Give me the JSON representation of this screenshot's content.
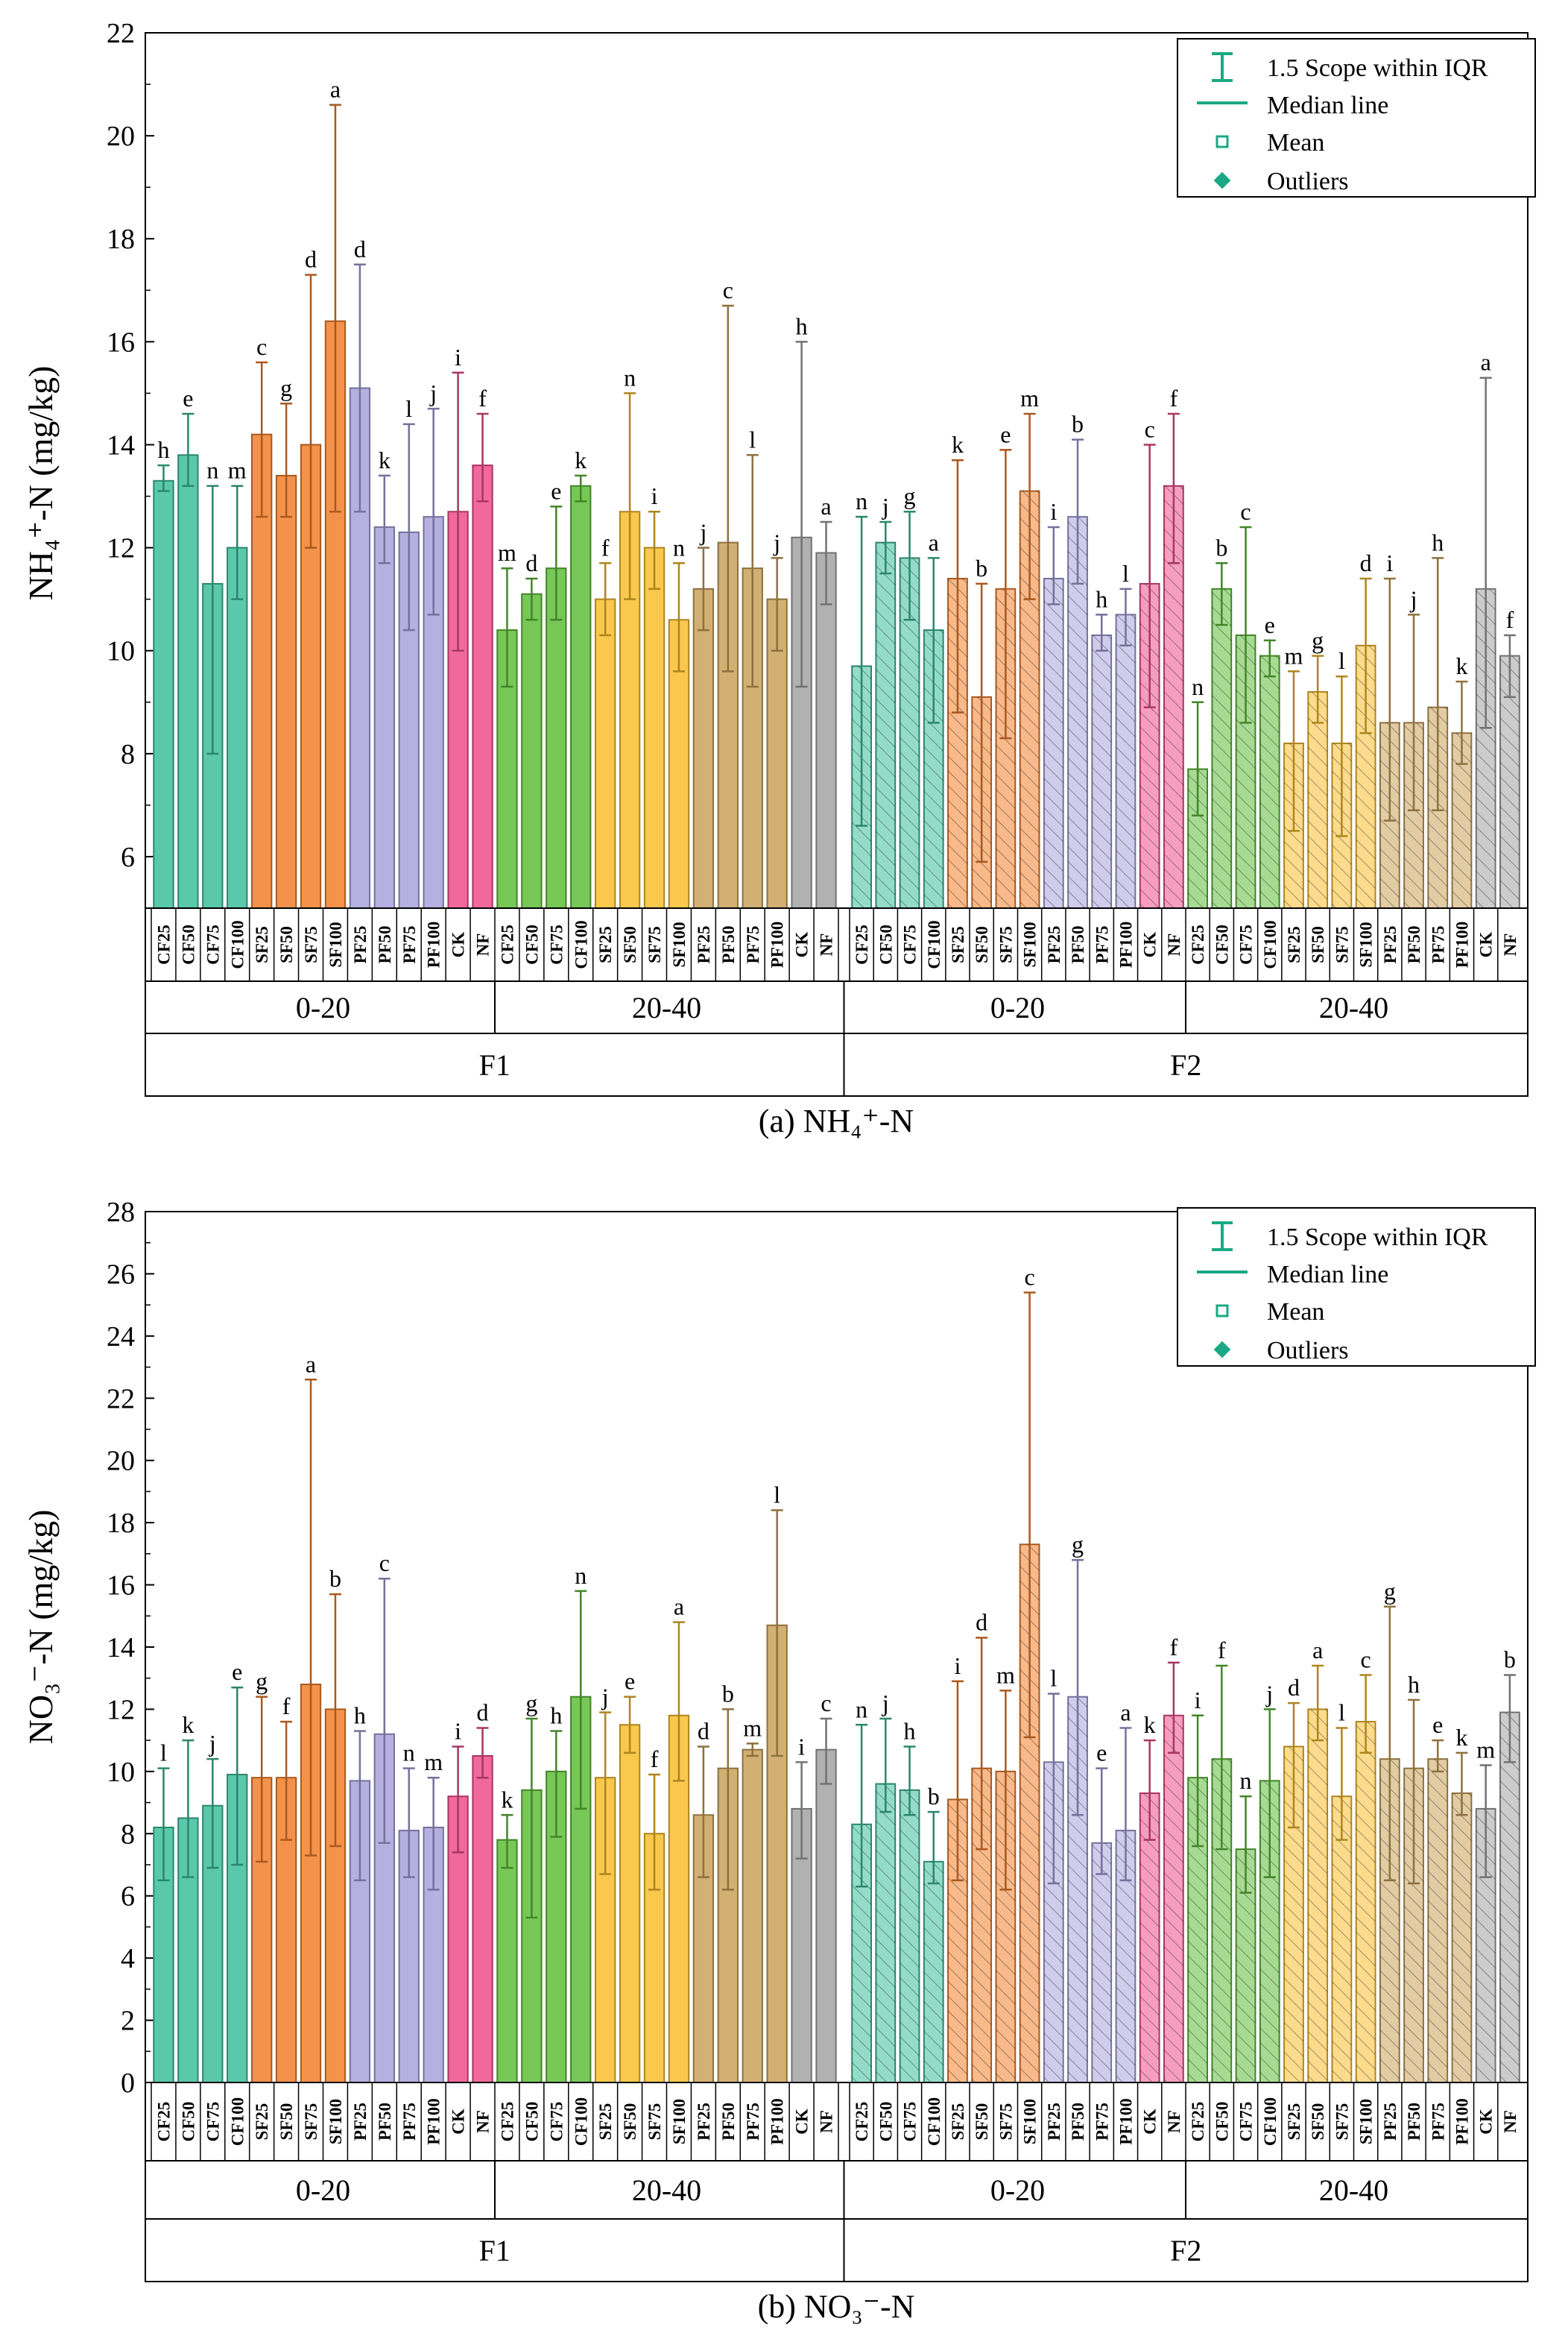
{
  "figure": {
    "panels": [
      {
        "caption": "(a) NH₄⁺-N",
        "ylabel": "NH₄⁺-N (mg/kg)",
        "legend": [
          "1.5 Scope within IQR",
          "Median line",
          "Mean",
          "Outliers"
        ]
      },
      {
        "caption": "(b) NO₃⁻-N",
        "ylabel": "NO₃⁻-N (mg/kg)",
        "legend": [
          "1.5 Scope within IQR",
          "Median line",
          "Mean",
          "Outliers"
        ]
      }
    ]
  },
  "chart_data": [
    {
      "type": "bar",
      "title": "(a) NH₄⁺-N",
      "ylabel": "NH₄⁺-N (mg/kg)",
      "ylim": [
        5,
        22
      ],
      "yticks": [
        6,
        8,
        10,
        12,
        14,
        16,
        18,
        20,
        22
      ],
      "groups": {
        "level1": [
          "F1",
          "F2"
        ],
        "level2": [
          "0-20",
          "20-40",
          "0-20",
          "20-40"
        ]
      },
      "categories": [
        "CF25",
        "CF50",
        "CF75",
        "CF100",
        "SF25",
        "SF50",
        "SF75",
        "SF100",
        "PF25",
        "PF50",
        "PF75",
        "PF100",
        "CK",
        "NF",
        "CF25",
        "CF50",
        "CF75",
        "CF100",
        "SF25",
        "SF50",
        "SF75",
        "SF100",
        "PF25",
        "PF50",
        "PF75",
        "PF100",
        "CK",
        "NF",
        "CF25",
        "CF50",
        "CF75",
        "CF100",
        "SF25",
        "SF50",
        "SF75",
        "SF100",
        "PF25",
        "PF50",
        "PF75",
        "PF100",
        "CK",
        "NF",
        "CF25",
        "CF50",
        "CF75",
        "CF100",
        "SF25",
        "SF50",
        "SF75",
        "SF100",
        "PF25",
        "PF50",
        "PF75",
        "PF100",
        "CK",
        "NF"
      ],
      "values": [
        13.3,
        13.8,
        11.3,
        12.0,
        14.2,
        13.4,
        14.0,
        16.4,
        15.1,
        12.4,
        12.3,
        12.6,
        12.7,
        13.6,
        10.4,
        11.1,
        11.6,
        13.2,
        11.0,
        12.7,
        12.0,
        10.6,
        11.2,
        12.1,
        11.6,
        11.0,
        12.2,
        11.9,
        9.7,
        12.1,
        11.8,
        10.4,
        11.4,
        9.1,
        11.2,
        13.1,
        11.4,
        12.6,
        10.3,
        10.7,
        11.3,
        13.2,
        7.7,
        11.2,
        10.3,
        9.9,
        8.2,
        9.2,
        8.2,
        10.1,
        8.6,
        8.6,
        8.9,
        8.4,
        11.2,
        9.9
      ],
      "error_low": [
        13.1,
        13.2,
        8.0,
        11.0,
        12.6,
        12.6,
        12.0,
        12.7,
        12.7,
        11.7,
        10.4,
        10.7,
        10.0,
        12.9,
        9.3,
        10.6,
        10.6,
        12.9,
        10.3,
        11.0,
        11.2,
        9.6,
        10.4,
        9.6,
        9.3,
        10.0,
        9.3,
        10.9,
        6.6,
        11.5,
        10.6,
        8.6,
        8.8,
        5.9,
        8.3,
        11.0,
        10.9,
        11.3,
        10.0,
        10.1,
        8.9,
        11.7,
        6.8,
        10.5,
        8.6,
        9.5,
        6.5,
        8.6,
        6.4,
        8.4,
        6.7,
        6.9,
        6.9,
        7.8,
        8.5,
        9.1
      ],
      "error_high": [
        13.6,
        14.6,
        13.2,
        13.2,
        15.6,
        14.8,
        17.3,
        20.6,
        17.5,
        13.4,
        14.4,
        14.7,
        15.4,
        14.6,
        11.6,
        11.4,
        12.8,
        13.4,
        11.7,
        15.0,
        12.7,
        11.7,
        12.0,
        16.7,
        13.8,
        11.8,
        16.0,
        12.5,
        12.6,
        12.5,
        12.7,
        11.8,
        13.7,
        11.3,
        13.9,
        14.6,
        12.4,
        14.1,
        10.7,
        11.2,
        14.0,
        14.6,
        9.0,
        11.7,
        12.4,
        10.2,
        9.6,
        9.9,
        9.5,
        11.4,
        11.4,
        10.7,
        11.8,
        9.4,
        15.3,
        10.3
      ],
      "letters": [
        "h",
        "e",
        "n",
        "m",
        "c",
        "g",
        "d",
        "a",
        "d",
        "k",
        "l",
        "j",
        "i",
        "f",
        "m",
        "d",
        "e",
        "k",
        "f",
        "n",
        "i",
        "n",
        "j",
        "c",
        "l",
        "j",
        "h",
        "a",
        "n",
        "j",
        "g",
        "a",
        "k",
        "b",
        "e",
        "m",
        "i",
        "b",
        "h",
        "l",
        "c",
        "f",
        "n",
        "b",
        "c",
        "e",
        "m",
        "g",
        "l",
        "d",
        "i",
        "j",
        "h",
        "k",
        "a",
        "f"
      ],
      "colors": {
        "CF_F1_0-20": "#3dbf9c",
        "SF": "#f27f2c",
        "PF": "#a9a2dc",
        "CK": "#ef4f8b",
        "CF_20-40": "#5fbe3a",
        "SF_20-40": "#f9be2d",
        "PF_20-40": "#caa25a",
        "CK_20-40": "#a3a3a3"
      }
    },
    {
      "type": "bar",
      "title": "(b) NO₃⁻-N",
      "ylabel": "NO₃⁻-N (mg/kg)",
      "ylim": [
        0,
        28
      ],
      "yticks": [
        0,
        2,
        4,
        6,
        8,
        10,
        12,
        14,
        16,
        18,
        20,
        22,
        24,
        26,
        28
      ],
      "groups": {
        "level1": [
          "F1",
          "F2"
        ],
        "level2": [
          "0-20",
          "20-40",
          "0-20",
          "20-40"
        ]
      },
      "categories": [
        "CF25",
        "CF50",
        "CF75",
        "CF100",
        "SF25",
        "SF50",
        "SF75",
        "SF100",
        "PF25",
        "PF50",
        "PF75",
        "PF100",
        "CK",
        "NF",
        "CF25",
        "CF50",
        "CF75",
        "CF100",
        "SF25",
        "SF50",
        "SF75",
        "SF100",
        "PF25",
        "PF50",
        "PF75",
        "PF100",
        "CK",
        "NF",
        "CF25",
        "CF50",
        "CF75",
        "CF100",
        "SF25",
        "SF50",
        "SF75",
        "SF100",
        "PF25",
        "PF50",
        "PF75",
        "PF100",
        "CK",
        "NF",
        "CF25",
        "CF50",
        "CF75",
        "CF100",
        "SF25",
        "SF50",
        "SF75",
        "SF100",
        "PF25",
        "PF50",
        "PF75",
        "PF100",
        "CK",
        "NF"
      ],
      "values": [
        8.2,
        8.5,
        8.9,
        9.9,
        9.8,
        9.8,
        12.8,
        12.0,
        9.7,
        11.2,
        8.1,
        8.2,
        9.2,
        10.5,
        7.8,
        9.4,
        10.0,
        12.4,
        9.8,
        11.5,
        8.0,
        11.8,
        8.6,
        10.1,
        10.7,
        14.7,
        8.8,
        10.7,
        8.3,
        9.6,
        9.4,
        7.1,
        9.1,
        10.1,
        10.0,
        17.3,
        10.3,
        12.4,
        7.7,
        8.1,
        9.3,
        11.8,
        9.8,
        10.4,
        7.5,
        9.7,
        10.8,
        12.0,
        9.2,
        11.6,
        10.4,
        10.1,
        10.4,
        9.3,
        8.8,
        11.9
      ],
      "error_low": [
        6.5,
        6.6,
        6.9,
        7.0,
        7.1,
        7.8,
        7.3,
        7.6,
        6.5,
        7.7,
        6.6,
        6.2,
        7.4,
        9.8,
        6.9,
        5.3,
        7.9,
        8.8,
        6.7,
        10.6,
        6.2,
        9.7,
        6.6,
        6.2,
        10.5,
        10.5,
        7.2,
        9.6,
        6.3,
        8.7,
        8.6,
        6.4,
        6.5,
        7.5,
        6.2,
        11.1,
        6.4,
        8.6,
        6.7,
        6.5,
        7.8,
        10.6,
        7.6,
        7.5,
        6.1,
        6.6,
        8.2,
        11.0,
        7.8,
        10.6,
        6.5,
        6.4,
        10.0,
        8.6,
        6.6,
        10.3
      ],
      "error_high": [
        10.1,
        11.0,
        10.4,
        12.7,
        12.4,
        11.6,
        22.6,
        15.7,
        11.3,
        16.2,
        10.1,
        9.8,
        10.8,
        11.4,
        8.6,
        11.7,
        11.3,
        15.8,
        11.9,
        12.4,
        9.9,
        14.8,
        10.8,
        12.0,
        10.9,
        18.4,
        10.3,
        11.7,
        11.5,
        11.7,
        10.8,
        8.7,
        12.9,
        14.3,
        12.6,
        25.4,
        12.5,
        16.8,
        10.1,
        11.4,
        11.0,
        13.5,
        11.8,
        13.4,
        9.2,
        12.0,
        12.2,
        13.4,
        11.4,
        13.1,
        15.3,
        12.3,
        11.0,
        10.6,
        10.2,
        13.1
      ],
      "letters": [
        "l",
        "k",
        "j",
        "e",
        "g",
        "f",
        "a",
        "b",
        "h",
        "c",
        "n",
        "m",
        "i",
        "d",
        "k",
        "g",
        "h",
        "n",
        "j",
        "e",
        "f",
        "a",
        "d",
        "b",
        "m",
        "l",
        "i",
        "c",
        "n",
        "j",
        "h",
        "b",
        "i",
        "d",
        "m",
        "c",
        "l",
        "g",
        "e",
        "a",
        "k",
        "f",
        "i",
        "f",
        "n",
        "j",
        "d",
        "a",
        "l",
        "c",
        "g",
        "h",
        "e",
        "k",
        "m",
        "b"
      ],
      "colors": {
        "CF_F1_0-20": "#3dbf9c",
        "SF": "#f27f2c",
        "PF": "#a9a2dc",
        "CK": "#ef4f8b",
        "CF_20-40": "#5fbe3a",
        "SF_20-40": "#f9be2d",
        "PF_20-40": "#caa25a",
        "CK_20-40": "#a3a3a3"
      }
    }
  ]
}
